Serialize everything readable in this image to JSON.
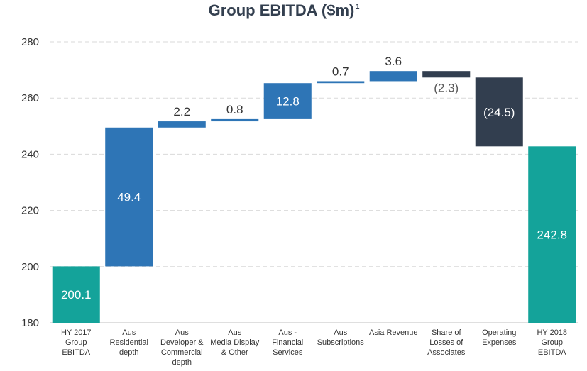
{
  "chart_data": {
    "type": "bar",
    "subtype": "waterfall",
    "title": "Group EBITDA  ($m)",
    "title_superscript": "1",
    "xlabel": "",
    "ylabel": "",
    "ylim": [
      180,
      280
    ],
    "yticks": [
      180,
      200,
      220,
      240,
      260,
      280
    ],
    "grid": true,
    "legend": "none",
    "categories": [
      [
        "HY 2017",
        "Group",
        "EBITDA"
      ],
      [
        "Aus",
        "Residential",
        "depth"
      ],
      [
        "Aus",
        "Developer &",
        "Commercial",
        "depth"
      ],
      [
        "Aus",
        "Media Display",
        "& Other"
      ],
      [
        "Aus -",
        "Financial",
        "Services"
      ],
      [
        "Aus",
        "Subscriptions"
      ],
      [
        "Asia Revenue"
      ],
      [
        "Share of",
        "Losses of",
        "Associates"
      ],
      [
        "Operating",
        "Expenses"
      ],
      [
        "HY 2018",
        "Group",
        "EBITDA"
      ]
    ],
    "values": [
      200.1,
      49.4,
      2.2,
      0.8,
      12.8,
      0.7,
      3.6,
      -2.3,
      -24.5,
      242.8
    ],
    "kinds": [
      "total",
      "increase",
      "increase",
      "increase",
      "increase",
      "increase",
      "increase",
      "decrease",
      "decrease",
      "total"
    ],
    "data_labels": [
      "200.1",
      "49.4",
      "2.2",
      "0.8",
      "12.8",
      "0.7",
      "3.6",
      "(2.3)",
      "(24.5)",
      "242.8"
    ],
    "colors": {
      "total": "#14a39a",
      "increase": "#2e75b6",
      "decrease": "#323e4f"
    }
  }
}
